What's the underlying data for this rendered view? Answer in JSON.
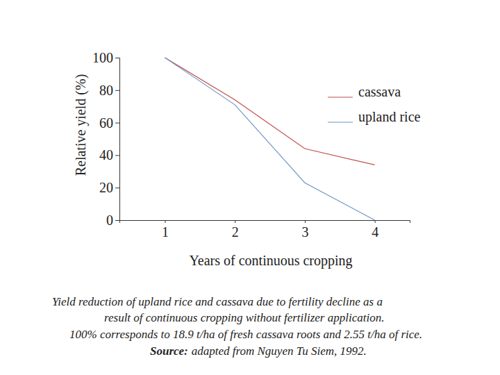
{
  "chart_data": {
    "type": "line",
    "x_label": "Years of continuous cropping",
    "y_label": "Relative yield (%)",
    "x": [
      1,
      2,
      3,
      4
    ],
    "series": [
      {
        "name": "cassava",
        "color": "#c0504d",
        "values": [
          100,
          74,
          44,
          34
        ]
      },
      {
        "name": "upland rice",
        "color": "#7094c4",
        "values": [
          100,
          71,
          23,
          0
        ]
      }
    ],
    "xlim": [
      0.35,
      4.5
    ],
    "xticks": [
      1,
      2,
      3,
      4
    ],
    "ylim": [
      0,
      100
    ],
    "yticks": [
      0,
      20,
      40,
      60,
      80,
      100
    ],
    "legend": "upper right",
    "grid": false,
    "caption": [
      "Yield reduction of upland rice and cassava due to fertility decline as a",
      "result of continuous cropping without fertilizer application.",
      "100% corresponds to 18.9 t/ha of fresh cassava roots and 2.55 t/ha of rice."
    ],
    "source_label": "Source:",
    "source": "adapted from Nguyen Tu Siem, 1992."
  }
}
